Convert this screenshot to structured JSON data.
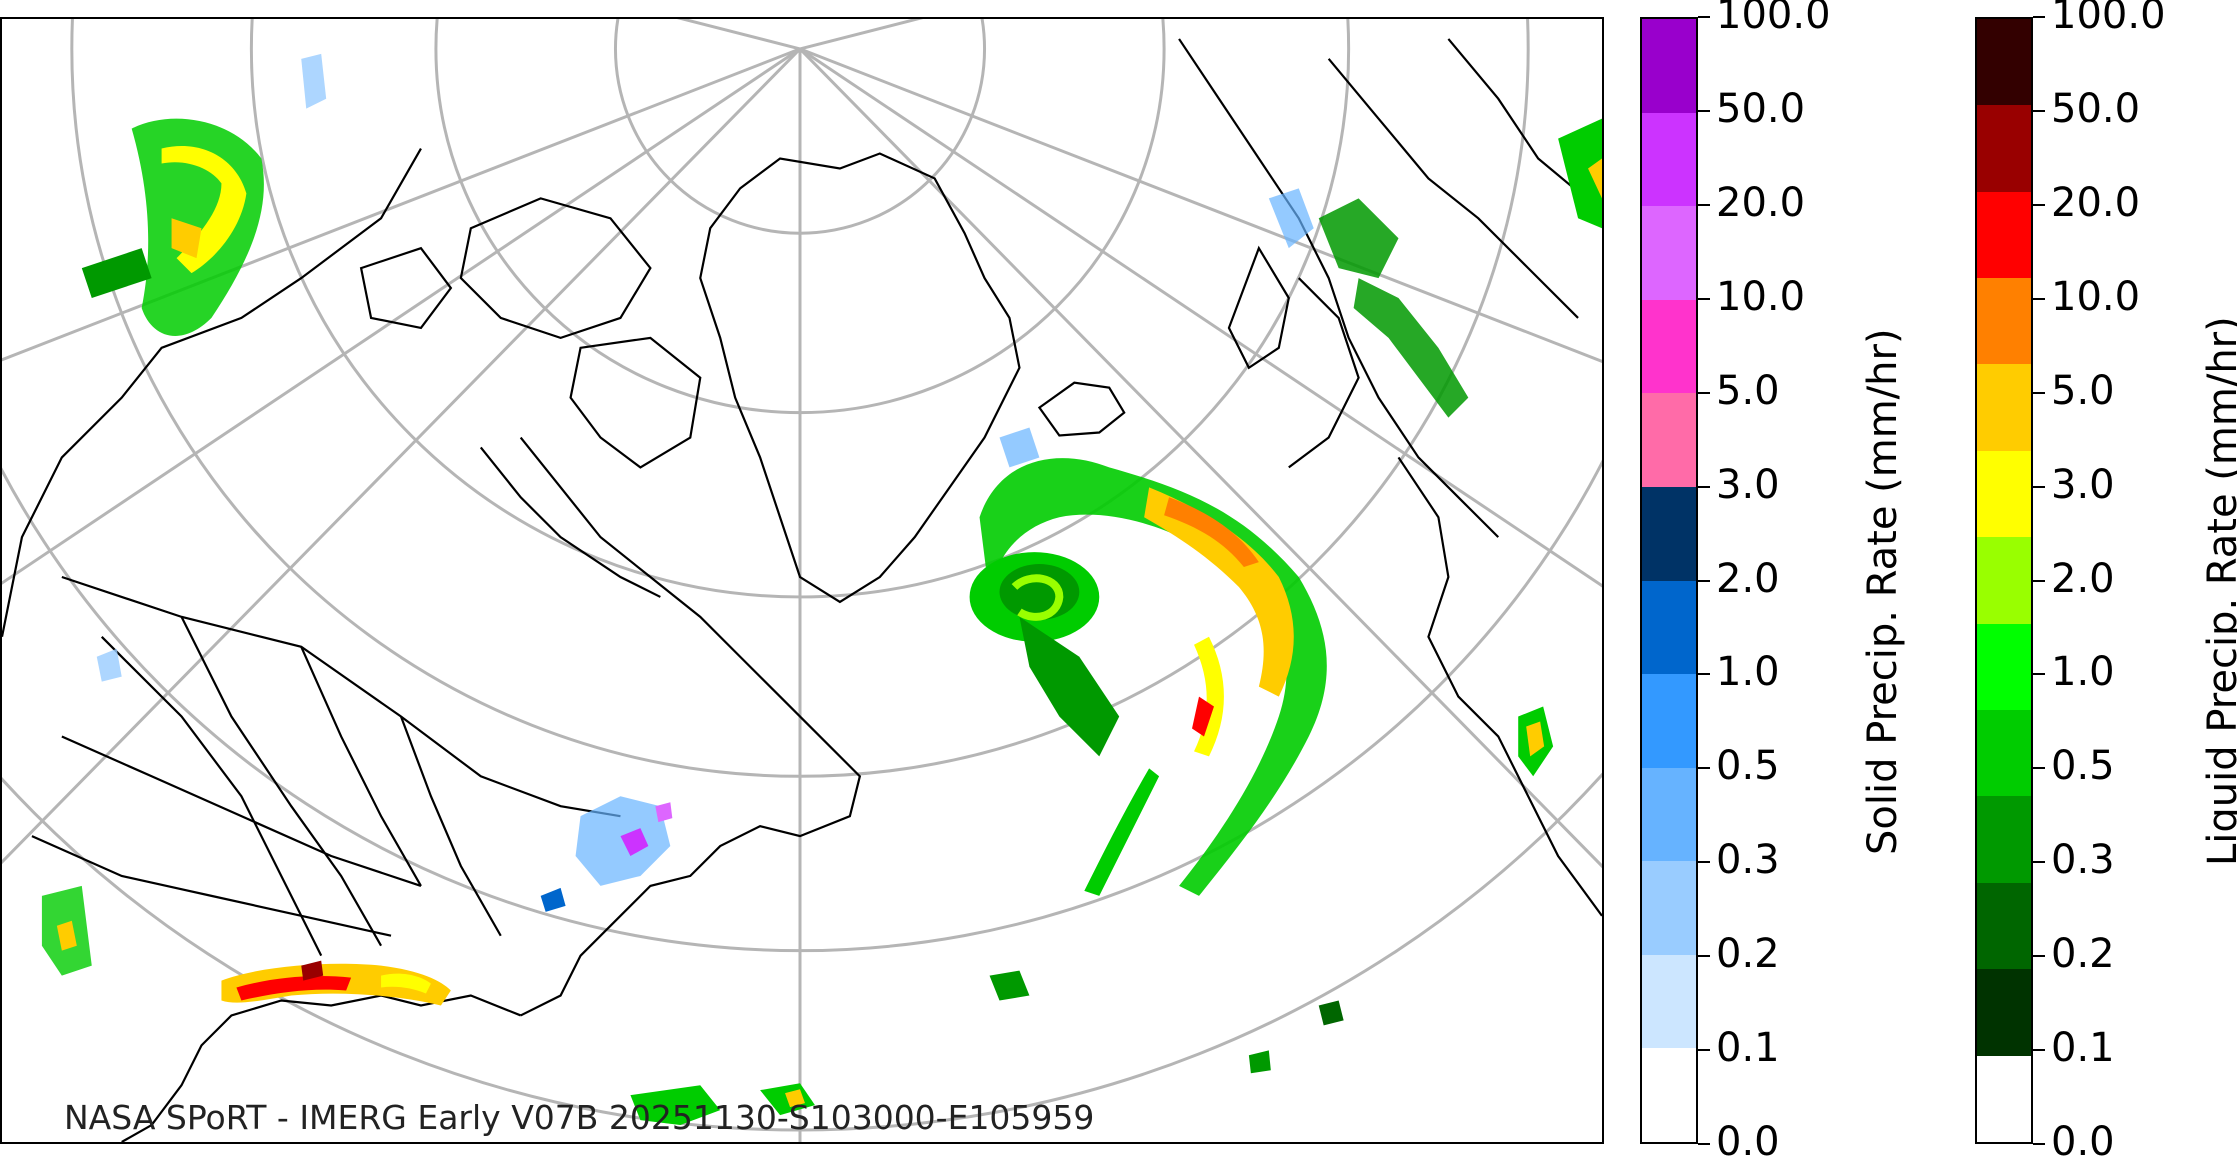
{
  "map": {
    "credit": "NASA SPoRT - IMERG Early V07B 20251130-S103000-E105959"
  },
  "colorbars": {
    "tick_labels": [
      "0.0",
      "0.1",
      "0.2",
      "0.3",
      "0.5",
      "1.0",
      "2.0",
      "3.0",
      "5.0",
      "10.0",
      "20.0",
      "50.0",
      "100.0"
    ],
    "solid": {
      "title": "Solid Precip. Rate (mm/hr)",
      "colors": [
        "#ffffff",
        "#cce6ff",
        "#99ccff",
        "#66b3ff",
        "#3399ff",
        "#0066cc",
        "#003366",
        "#ff6ba8",
        "#ff33cc",
        "#dd66ff",
        "#cc33ff",
        "#9900cc"
      ]
    },
    "liquid": {
      "title": "Liquid Precip. Rate (mm/hr)",
      "colors": [
        "#ffffff",
        "#003300",
        "#006600",
        "#009900",
        "#00cc00",
        "#00ff00",
        "#99ff00",
        "#ffff00",
        "#ffcc00",
        "#ff8000",
        "#ff0000",
        "#990000",
        "#330000"
      ]
    }
  }
}
